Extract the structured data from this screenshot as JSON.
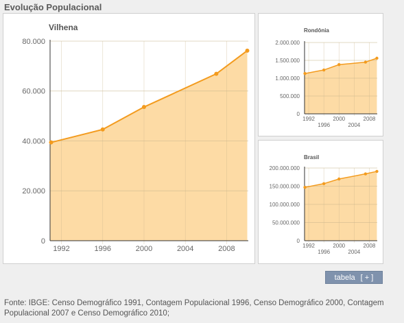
{
  "section_title": "Evolução Populacional",
  "table_button": {
    "label": "tabela",
    "toggle": "[ + ]"
  },
  "source_note": "Fonte: IBGE: Censo Demográfico 1991, Contagem Populacional 1996, Censo Demográfico 2000, Contagem Populacional 2007 e Censo Demográfico 2010;",
  "colors": {
    "line": "#f39b1e",
    "area": "#fddba5",
    "grid": "#c8b48c",
    "axis": "#333333"
  },
  "chart_data": [
    {
      "type": "area",
      "title": "Vilhena",
      "x": [
        1991,
        1996,
        2000,
        2007,
        2010
      ],
      "values": [
        39400,
        44600,
        53600,
        66900,
        76200
      ],
      "xlim": [
        1990.9,
        2010.1
      ],
      "ylim": [
        0,
        80000
      ],
      "xticks": [
        1992,
        1996,
        2000,
        2004,
        2008
      ],
      "yticks": [
        0,
        20000,
        40000,
        60000,
        80000
      ],
      "ytick_labels": [
        "0",
        "20.000",
        "40.000",
        "60.000",
        "80.000"
      ],
      "xtick_labels": [
        "1992",
        "1996",
        "2000",
        "2004",
        "2008"
      ],
      "grid": true
    },
    {
      "type": "area",
      "title": "Rondônia",
      "x": [
        1991,
        1996,
        2000,
        2007,
        2010
      ],
      "values": [
        1130000,
        1230000,
        1380000,
        1450000,
        1560000
      ],
      "xlim": [
        1990.9,
        2010.1
      ],
      "ylim": [
        0,
        2000000
      ],
      "xticks": [
        1992,
        1996,
        2000,
        2004,
        2008
      ],
      "yticks": [
        0,
        500000,
        1000000,
        1500000,
        2000000
      ],
      "ytick_labels": [
        "0",
        "500.000",
        "1.000.000",
        "1.500.000",
        "2.000.000"
      ],
      "xtick_labels": [
        "1992",
        "1996",
        "2000",
        "2004",
        "2008"
      ],
      "grid": true
    },
    {
      "type": "area",
      "title": "Brasil",
      "x": [
        1991,
        1996,
        2000,
        2007,
        2010
      ],
      "values": [
        146800000,
        157000000,
        169800000,
        183900000,
        190700000
      ],
      "xlim": [
        1990.9,
        2010.1
      ],
      "ylim": [
        0,
        200000000
      ],
      "xticks": [
        1992,
        1996,
        2000,
        2004,
        2008
      ],
      "yticks": [
        0,
        50000000,
        100000000,
        150000000,
        200000000
      ],
      "ytick_labels": [
        "0",
        "50.000.000",
        "100.000.000",
        "150.000.000",
        "200.000.000"
      ],
      "xtick_labels": [
        "1992",
        "1996",
        "2000",
        "2004",
        "2008"
      ],
      "grid": true
    }
  ]
}
